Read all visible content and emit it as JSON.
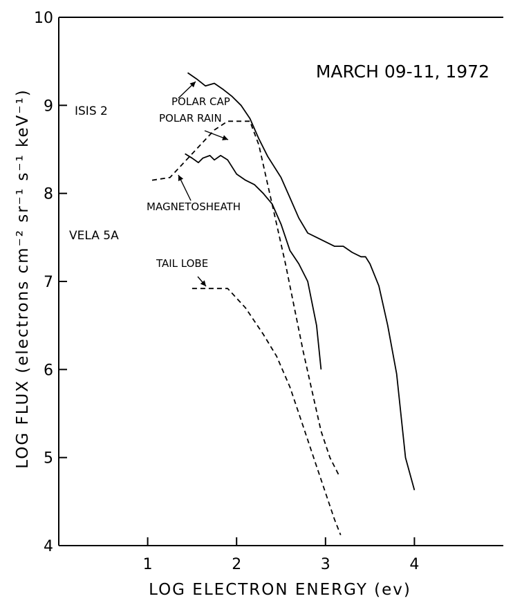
{
  "chart_data": {
    "type": "line",
    "title": "MARCH 09-11, 1972",
    "xlabel": "LOG ELECTRON ENERGY (ev)",
    "ylabel": "LOG FLUX (electrons cm⁻² sr⁻¹ s⁻¹ keV⁻¹)",
    "xlim": [
      0,
      5
    ],
    "ylim": [
      4,
      10
    ],
    "x_ticks": [
      1,
      2,
      3,
      4
    ],
    "y_ticks": [
      4,
      5,
      6,
      7,
      8,
      9,
      10
    ],
    "grid": false,
    "instrument_labels": [
      "ISIS 2",
      "VELA 5A"
    ],
    "series": [
      {
        "name": "POLAR CAP",
        "style": "solid",
        "x": [
          1.45,
          1.55,
          1.65,
          1.75,
          1.85,
          1.95,
          2.05,
          2.15,
          2.25,
          2.35,
          2.5,
          2.6,
          2.7,
          2.8,
          2.9,
          3.0,
          3.1,
          3.2,
          3.3,
          3.4,
          3.45,
          3.5,
          3.6,
          3.7,
          3.8,
          3.9,
          4.0
        ],
        "y": [
          9.37,
          9.3,
          9.22,
          9.25,
          9.18,
          9.1,
          9.0,
          8.85,
          8.62,
          8.42,
          8.18,
          7.95,
          7.72,
          7.55,
          7.5,
          7.45,
          7.4,
          7.4,
          7.33,
          7.28,
          7.28,
          7.2,
          6.95,
          6.5,
          5.95,
          5.0,
          4.63
        ]
      },
      {
        "name": "POLAR RAIN",
        "style": "solid",
        "x": [
          1.42,
          1.5,
          1.57,
          1.62,
          1.7,
          1.75,
          1.82,
          1.9,
          2.0,
          2.1,
          2.2,
          2.3,
          2.4,
          2.5,
          2.6,
          2.7,
          2.8,
          2.9,
          2.95
        ],
        "y": [
          8.45,
          8.4,
          8.35,
          8.4,
          8.43,
          8.38,
          8.43,
          8.38,
          8.22,
          8.15,
          8.1,
          8.0,
          7.88,
          7.65,
          7.35,
          7.2,
          7.0,
          6.5,
          6.0
        ]
      },
      {
        "name": "MAGNETOSHEATH",
        "style": "dashed",
        "x": [
          1.05,
          1.25,
          1.5,
          1.75,
          1.9,
          2.05,
          2.15,
          2.25,
          2.35,
          2.45,
          2.55,
          2.65,
          2.75,
          2.85,
          2.95,
          3.05,
          3.15
        ],
        "y": [
          8.15,
          8.18,
          8.45,
          8.72,
          8.82,
          8.82,
          8.82,
          8.55,
          8.1,
          7.65,
          7.2,
          6.7,
          6.2,
          5.75,
          5.3,
          5.0,
          4.8
        ]
      },
      {
        "name": "TAIL LOBE",
        "style": "dashed",
        "x": [
          1.5,
          1.9,
          2.1,
          2.3,
          2.45,
          2.6,
          2.75,
          2.9,
          3.0,
          3.1,
          3.17
        ],
        "y": [
          6.92,
          6.92,
          6.7,
          6.4,
          6.15,
          5.8,
          5.35,
          4.9,
          4.6,
          4.3,
          4.12
        ]
      }
    ],
    "annotations": [
      {
        "text": "POLAR CAP",
        "for": "POLAR CAP"
      },
      {
        "text": "POLAR RAIN",
        "for": "POLAR RAIN"
      },
      {
        "text": "MAGNETOSHEATH",
        "for": "MAGNETOSHEATH"
      },
      {
        "text": "TAIL LOBE",
        "for": "TAIL LOBE"
      }
    ]
  }
}
